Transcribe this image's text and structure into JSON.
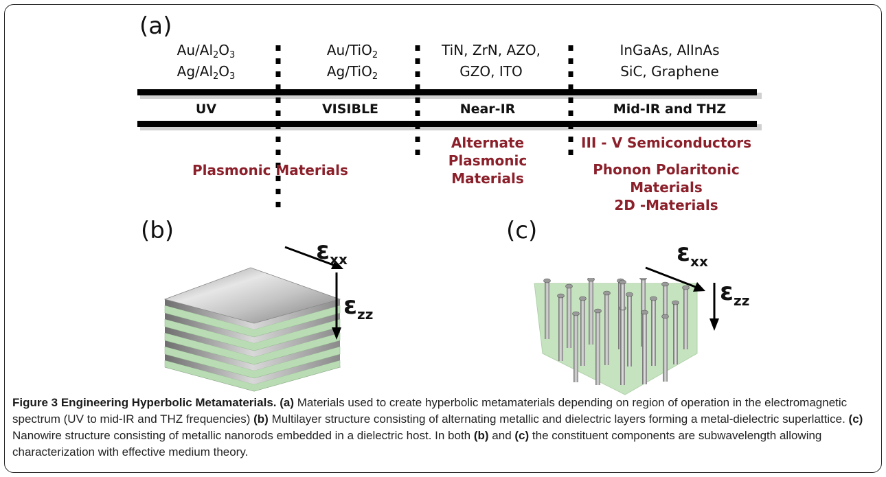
{
  "panels": {
    "a": "(a)",
    "b": "(b)",
    "c": "(c)"
  },
  "materials": [
    {
      "line1_pre": "Au/Al",
      "line1_s1": "2",
      "line1_mid": "O",
      "line1_s2": "3",
      "line2_pre": "Ag/Al",
      "line2_s1": "2",
      "line2_mid": "O",
      "line2_s2": "3"
    },
    {
      "line1_pre": "Au/TiO",
      "line1_s1": "2",
      "line2_pre": "Ag/TiO",
      "line2_s1": "2"
    },
    {
      "line1": "TiN, ZrN, AZO,",
      "line2": "GZO, ITO"
    },
    {
      "line1": "InGaAs, AlInAs",
      "line2": "SiC, Graphene"
    }
  ],
  "bands": [
    "UV",
    "VISIBLE",
    "Near-IR",
    "Mid-IR and THZ"
  ],
  "categories": {
    "plasmonic": "Plasmonic Materials",
    "alternate": [
      "Alternate",
      "Plasmonic",
      "Materials"
    ],
    "semiconductors": "III - V Semiconductors",
    "phonon": [
      "Phonon Polaritonic",
      "Materials",
      "2D -Materials"
    ]
  },
  "epsilon": {
    "symbol": "ε",
    "xx": "xx",
    "zz": "zz"
  },
  "colors": {
    "category_red": "#8b1f2a",
    "dielectric_green": "#b9dcb4",
    "metal_gray": "#b5b5b5"
  },
  "caption": {
    "title": "Figure 3 Engineering Hyperbolic Metamaterials.",
    "a_tag": "(a)",
    "a_text": " Materials used to create hyperbolic metamaterials depending on region of operation in the electromagnetic spectrum (UV to mid-IR and THZ frequencies) ",
    "b_tag": "(b)",
    "b_text": " Multilayer structure consisting of alternating metallic and dielectric layers forming a metal-dielectric superlattice. ",
    "c_tag": "(c)",
    "c_text": " Nanowire structure consisting of metallic nanorods embedded in a dielectric host. In both ",
    "b_tag2": "(b)",
    "and_text": " and ",
    "c_tag2": "(c)",
    "end_text": " the constituent components are subwavelength allowing characterization with effective medium theory."
  }
}
